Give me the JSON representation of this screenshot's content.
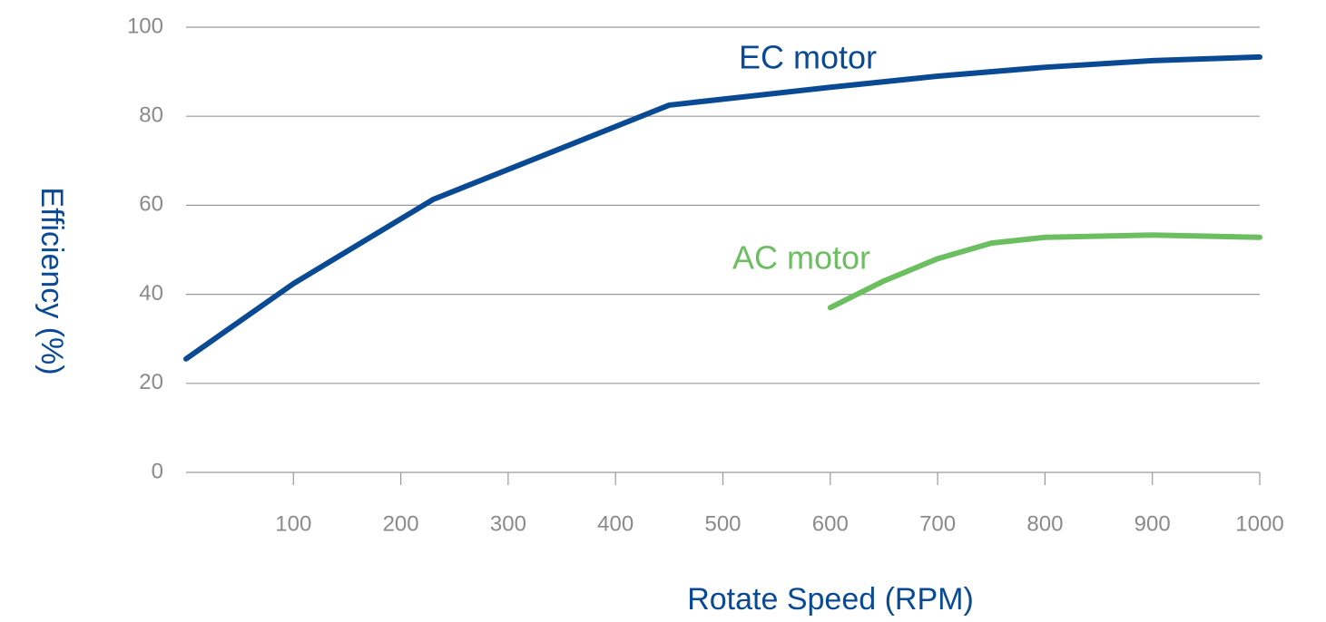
{
  "chart_data": {
    "type": "line",
    "xlabel": "Rotate Speed (RPM)",
    "ylabel": "Efficiency (%)",
    "xlim": [
      0,
      1000
    ],
    "xticks": [
      100,
      200,
      300,
      400,
      500,
      600,
      700,
      800,
      900,
      1000
    ],
    "ylim": [
      0,
      100
    ],
    "yticks": [
      0,
      20,
      40,
      60,
      80,
      100
    ],
    "grid": true,
    "series": [
      {
        "name": "EC motor",
        "color": "#0a4a94",
        "x": [
          0,
          100,
          230,
          450,
          600,
          700,
          800,
          900,
          1000
        ],
        "values": [
          25.5,
          42.4,
          61.3,
          82.5,
          86.5,
          89,
          91,
          92.5,
          93.3
        ]
      },
      {
        "name": "AC motor",
        "color": "#6cbf60",
        "x": [
          600,
          650,
          700,
          750,
          800,
          900,
          1000
        ],
        "values": [
          37,
          43,
          48,
          51.5,
          52.8,
          53.3,
          52.8
        ]
      }
    ]
  }
}
